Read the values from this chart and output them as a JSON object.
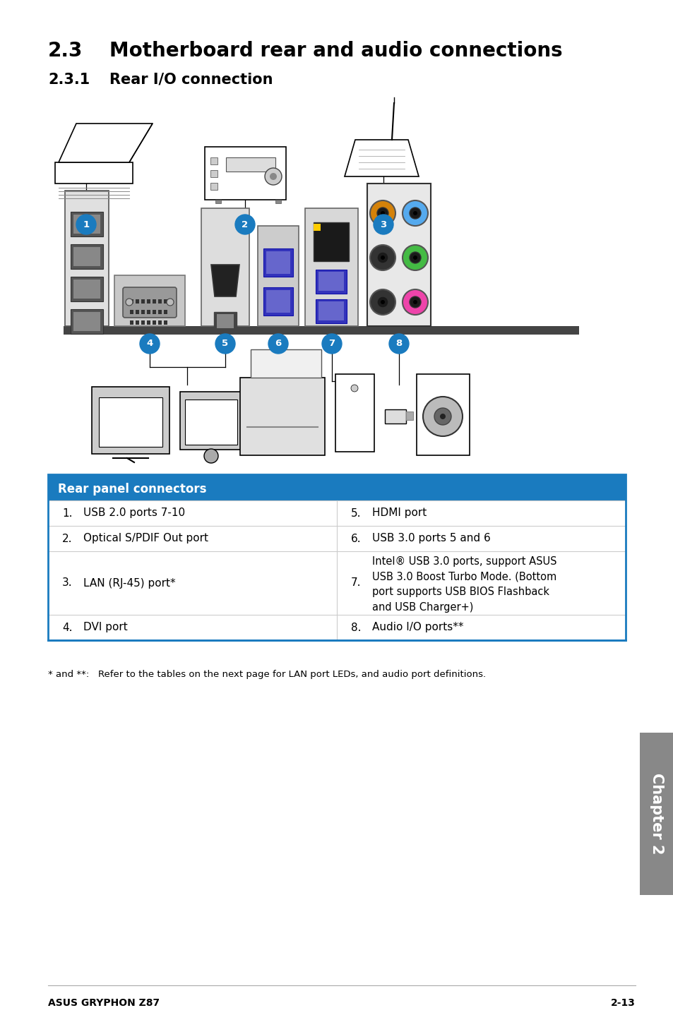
{
  "title_section": "2.3",
  "title_text": "Motherboard rear and audio connections",
  "subtitle_section": "2.3.1",
  "subtitle_text": "Rear I/O connection",
  "table_header": "Rear panel connectors",
  "table_header_bg": "#1a7bbf",
  "table_header_fg": "#ffffff",
  "table_rows": [
    [
      "1.",
      "USB 2.0 ports 7-10",
      "5.",
      "HDMI port"
    ],
    [
      "2.",
      "Optical S/PDIF Out port",
      "6.",
      "USB 3.0 ports 5 and 6"
    ],
    [
      "3.",
      "LAN (RJ-45) port*",
      "7.",
      "Intel® USB 3.0 ports, support ASUS\nUSB 3.0 Boost Turbo Mode. (Bottom\nport supports USB BIOS Flashback\nand USB Charger+)"
    ],
    [
      "4.",
      "DVI port",
      "8.",
      "Audio I/O ports**"
    ]
  ],
  "footnote": "* and **:   Refer to the tables on the next page for LAN port LEDs, and audio port definitions.",
  "footer_left": "ASUS GRYPHON Z87",
  "footer_right": "2-13",
  "chapter_label": "Chapter 2",
  "table_border_color": "#1a7bbf",
  "table_row_line_color": "#cccccc",
  "bg_color": "#ffffff",
  "side_tab_bg": "#888888",
  "side_tab_fg": "#ffffff",
  "circle_color": "#1a7bbf",
  "panel_ground_color": "#444444",
  "audio_colors": [
    "#d4820a",
    "#55aaee",
    "#333333",
    "#44bb44",
    "#333333",
    "#ee44aa"
  ],
  "audio_labels": [
    "orange",
    "lightblue",
    "black",
    "green",
    "black",
    "pink"
  ]
}
